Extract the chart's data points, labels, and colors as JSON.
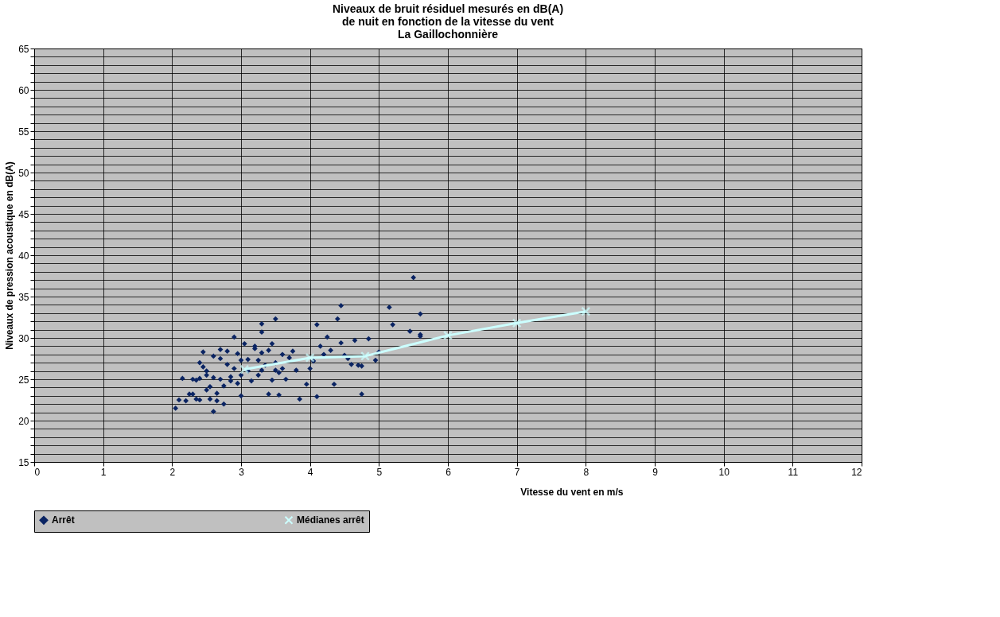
{
  "chart_data": {
    "type": "scatter",
    "title": "Niveaux de bruit résiduel mesurés en dB(A)\nde nuit en fonction de la vitesse du vent\nLa Gaillochonnière",
    "xlabel": "Vitesse du vent en m/s",
    "ylabel": "Niveaux de pression acoustique en dB(A)",
    "xlim": [
      0,
      12
    ],
    "xticks": [
      0,
      1,
      2,
      3,
      4,
      5,
      6,
      7,
      8,
      9,
      10,
      11,
      12
    ],
    "ylim": [
      15,
      65
    ],
    "yticks": [
      15,
      {
        "value": 16,
        "label": null
      },
      {
        "value": 17,
        "label": null
      },
      {
        "value": 18,
        "label": null
      },
      {
        "value": 19,
        "label": null
      },
      20,
      {
        "value": 21,
        "label": null
      },
      {
        "value": 22,
        "label": null
      },
      {
        "value": 23,
        "label": null
      },
      {
        "value": 24,
        "label": null
      },
      25,
      {
        "value": 26,
        "label": null
      },
      {
        "value": 27,
        "label": null
      },
      {
        "value": 28,
        "label": null
      },
      {
        "value": 29,
        "label": null
      },
      30,
      {
        "value": 31,
        "label": null
      },
      {
        "value": 32,
        "label": null
      },
      {
        "value": 33,
        "label": null
      },
      {
        "value": 34,
        "label": null
      },
      35,
      {
        "value": 36,
        "label": null
      },
      {
        "value": 37,
        "label": null
      },
      {
        "value": 38,
        "label": null
      },
      {
        "value": 39,
        "label": null
      },
      40,
      {
        "value": 41,
        "label": null
      },
      {
        "value": 42,
        "label": null
      },
      {
        "value": 43,
        "label": null
      },
      {
        "value": 44,
        "label": null
      },
      45,
      {
        "value": 46,
        "label": null
      },
      {
        "value": 47,
        "label": null
      },
      {
        "value": 48,
        "label": null
      },
      {
        "value": 49,
        "label": null
      },
      50,
      {
        "value": 51,
        "label": null
      },
      {
        "value": 52,
        "label": null
      },
      {
        "value": 53,
        "label": null
      },
      {
        "value": 54,
        "label": null
      },
      55,
      {
        "value": 56,
        "label": null
      },
      {
        "value": 57,
        "label": null
      },
      {
        "value": 58,
        "label": null
      },
      {
        "value": 59,
        "label": null
      },
      60,
      {
        "value": 61,
        "label": null
      },
      {
        "value": 62,
        "label": null
      },
      {
        "value": 63,
        "label": null
      },
      {
        "value": 64,
        "label": null
      },
      65
    ],
    "grid": true,
    "legend": "bottom",
    "series": [
      {
        "name": "Arrêt",
        "type": "scatter",
        "marker": "diamond",
        "color": "#0a2463",
        "x": [
          2.05,
          2.1,
          2.15,
          2.2,
          2.25,
          2.3,
          2.35,
          2.4,
          2.35,
          2.4,
          2.4,
          2.45,
          2.45,
          2.5,
          2.5,
          2.55,
          2.55,
          2.6,
          2.6,
          2.6,
          2.65,
          2.65,
          2.7,
          2.7,
          2.7,
          2.75,
          2.75,
          2.8,
          2.8,
          2.85,
          2.85,
          2.9,
          2.9,
          2.95,
          2.95,
          3.0,
          3.0,
          3.0,
          3.05,
          3.1,
          3.1,
          3.15,
          3.2,
          3.2,
          3.25,
          3.25,
          3.3,
          3.3,
          3.3,
          3.35,
          3.4,
          3.4,
          3.45,
          3.5,
          3.5,
          3.55,
          3.55,
          3.6,
          3.6,
          3.7,
          3.75,
          3.8,
          3.85,
          3.95,
          4.0,
          4.05,
          4.1,
          4.1,
          4.15,
          4.2,
          4.25,
          4.3,
          4.35,
          4.4,
          4.45,
          4.45,
          4.5,
          4.55,
          4.6,
          4.65,
          4.7,
          4.75,
          4.75,
          4.85,
          4.95,
          5.0,
          5.15,
          5.2,
          5.45,
          5.5,
          5.6,
          5.6,
          5.6,
          3.5,
          3.3,
          2.5,
          2.3,
          3.65,
          3.45
        ],
        "values": [
          21.5,
          22.5,
          25.1,
          22.4,
          23.2,
          23.2,
          22.6,
          22.5,
          24.9,
          25.1,
          27.0,
          28.3,
          26.5,
          25.5,
          23.7,
          22.6,
          24.1,
          21.1,
          25.2,
          27.8,
          22.4,
          23.3,
          25.0,
          27.5,
          28.6,
          22.0,
          24.2,
          26.8,
          28.4,
          25.3,
          24.8,
          26.3,
          30.1,
          24.5,
          28.1,
          27.3,
          25.5,
          23.0,
          29.3,
          26.0,
          27.4,
          24.8,
          28.7,
          29.0,
          27.3,
          25.5,
          30.7,
          31.7,
          28.2,
          26.7,
          23.2,
          28.5,
          24.9,
          32.3,
          27.0,
          23.1,
          25.8,
          28.0,
          26.3,
          27.6,
          28.4,
          26.1,
          22.6,
          24.4,
          26.3,
          27.2,
          31.6,
          22.9,
          29.0,
          28.0,
          30.1,
          28.5,
          24.4,
          32.3,
          33.9,
          29.4,
          27.9,
          27.5,
          26.8,
          29.7,
          26.7,
          23.2,
          26.6,
          29.9,
          27.3,
          28.3,
          33.7,
          31.6,
          30.8,
          37.3,
          32.9,
          30.4,
          30.2,
          26.1,
          26.1,
          26.0,
          25.0,
          25.0,
          29.3
        ]
      },
      {
        "name": "Médianes arrêt",
        "type": "line",
        "marker": "cross",
        "color": "#ccffff",
        "x": [
          3.05,
          4.0,
          4.8,
          6.0,
          7.0,
          8.0
        ],
        "values": [
          26.2,
          27.6,
          27.8,
          30.3,
          31.8,
          33.2
        ]
      }
    ]
  }
}
